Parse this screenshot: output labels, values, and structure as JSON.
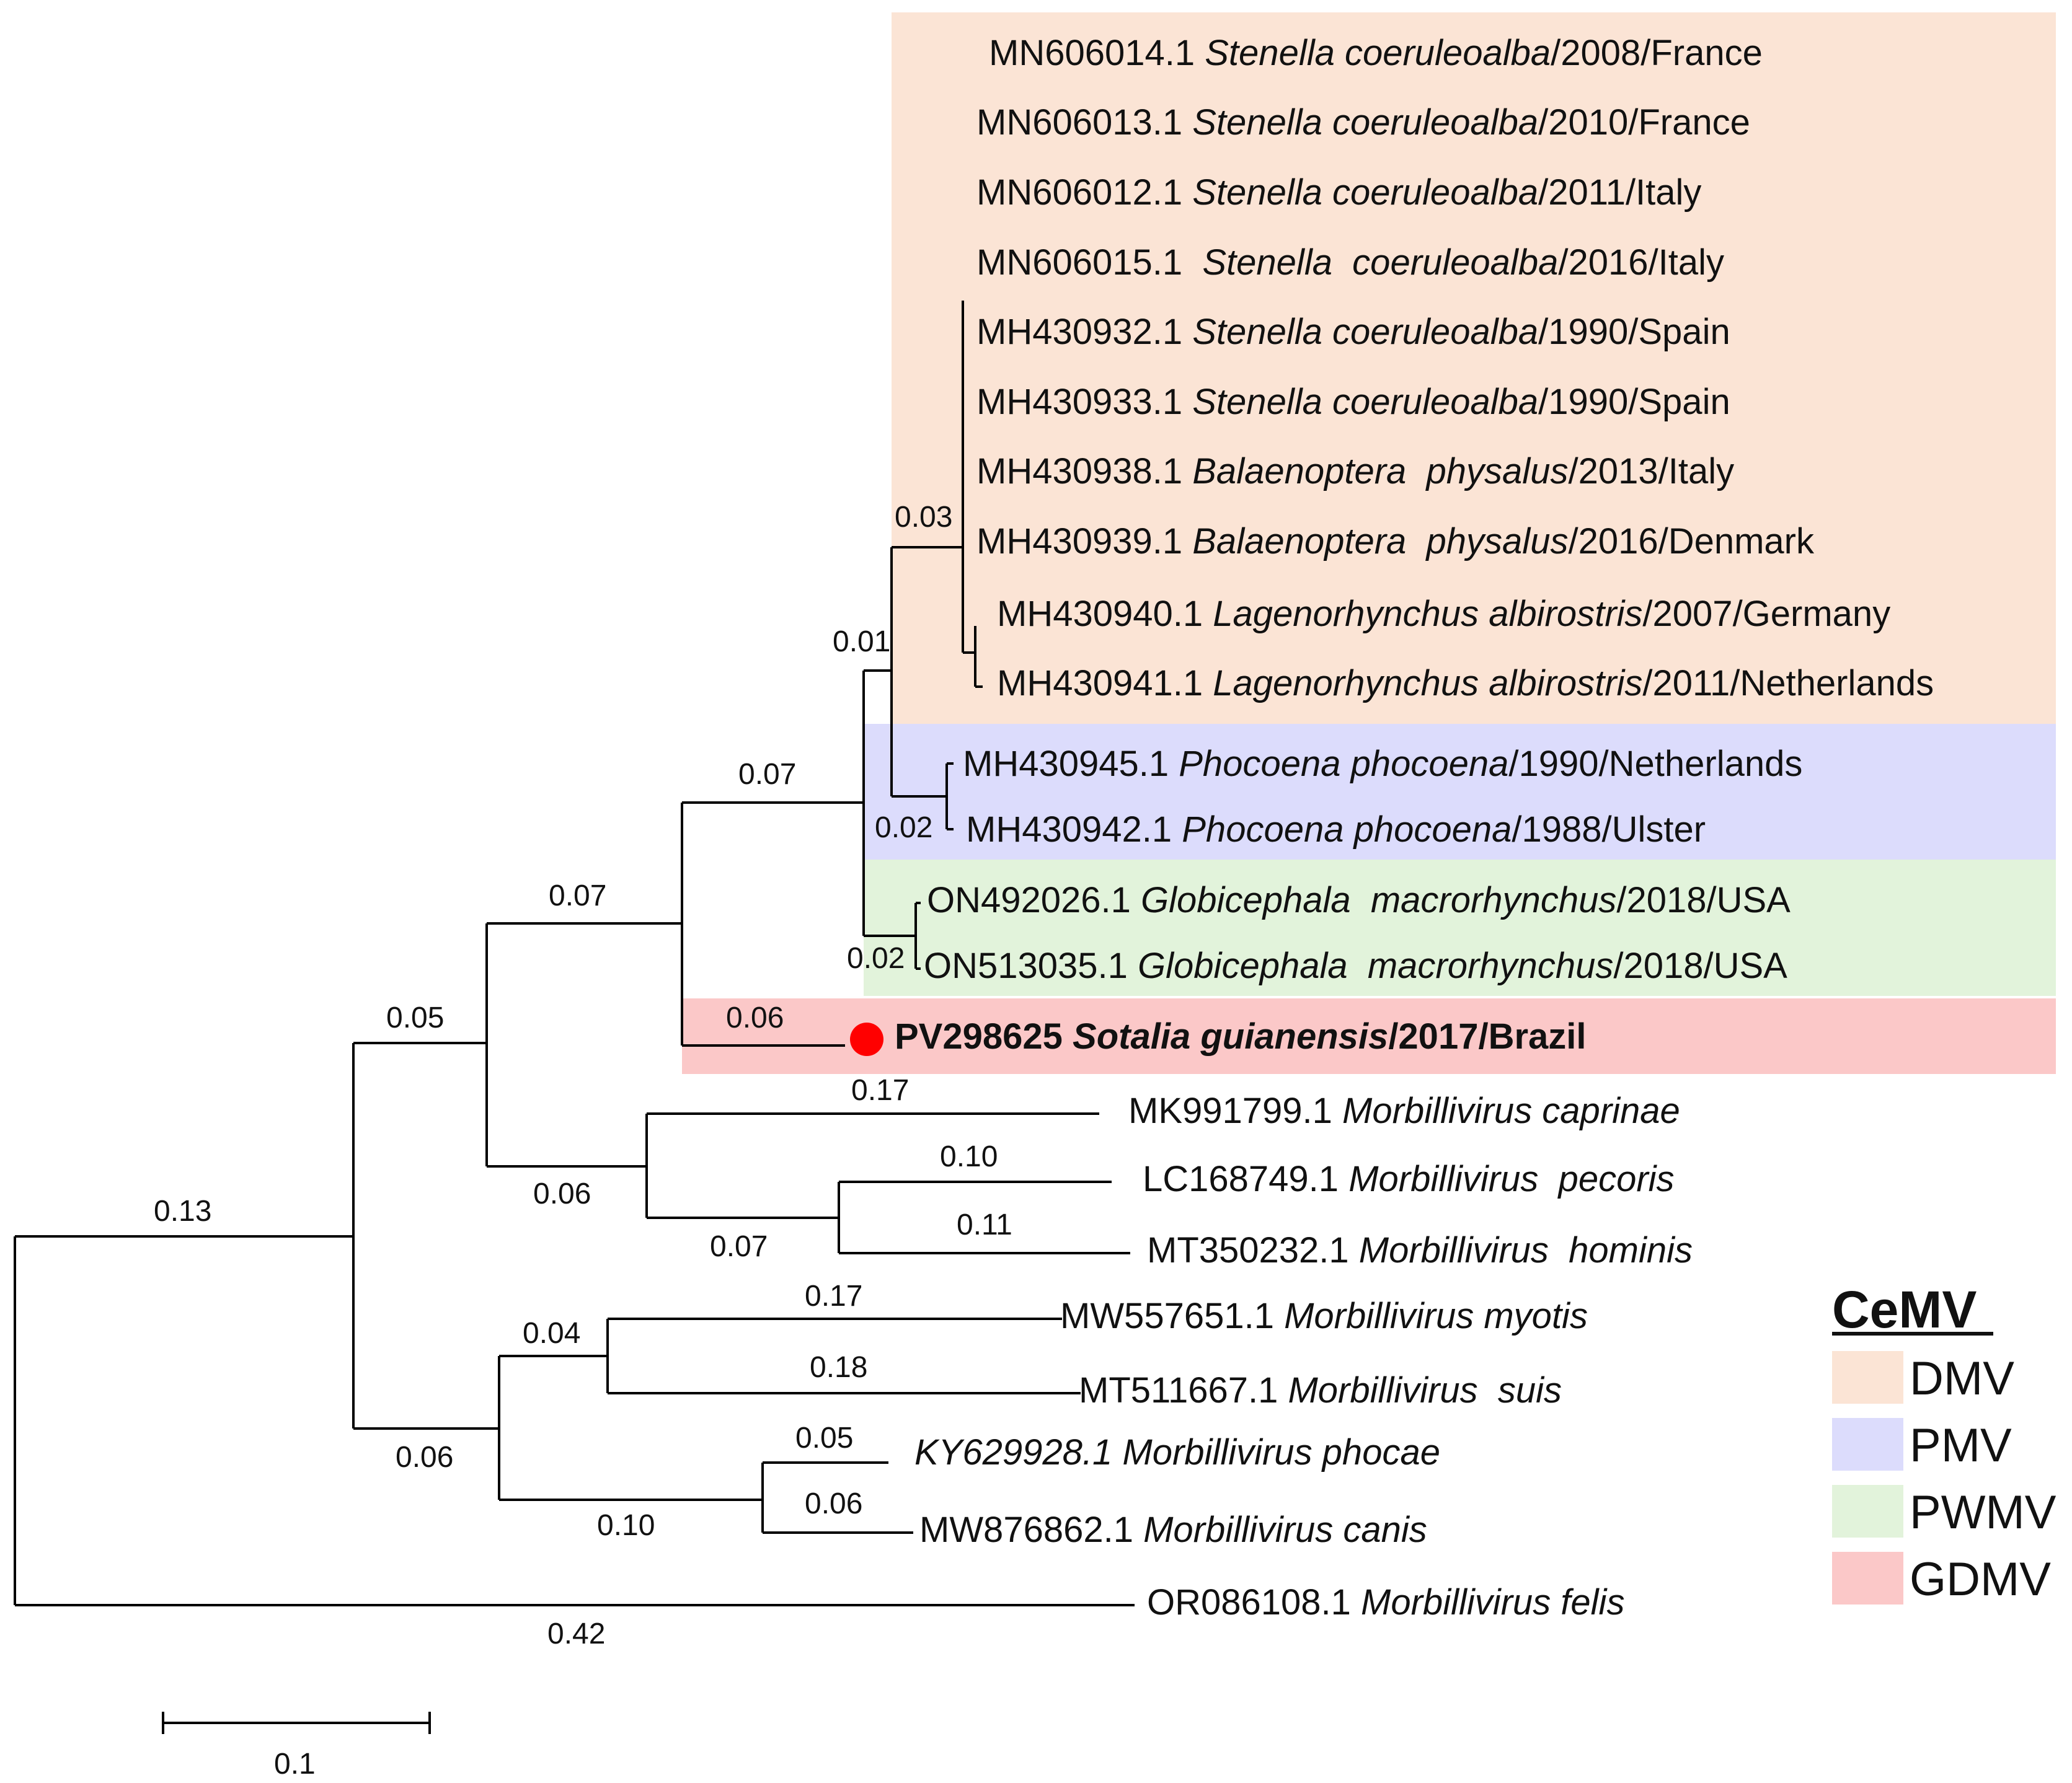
{
  "figure": {
    "type": "phylogenetic-tree",
    "highlight_marker": {
      "color": "#ff0000"
    }
  },
  "clade_colors": {
    "DMV": "#fbe4d5",
    "PMV": "#dcdcfc",
    "PWMV": "#e2f3db",
    "GDMV": "#fbc8c8"
  },
  "taxa": {
    "t1": {
      "accession": "MN606014.1",
      "species": "Stenella coeruleoalba",
      "suffix": "/2008/France"
    },
    "t2": {
      "accession": "MN606013.1",
      "species": "Stenella coeruleoalba",
      "suffix": "/2010/France"
    },
    "t3": {
      "accession": "MN606012.1",
      "species": "Stenella coeruleoalba",
      "suffix": "/2011/Italy"
    },
    "t4": {
      "accession": "MN606015.1",
      "species": "Stenella  coeruleoalba",
      "suffix": "/2016/Italy"
    },
    "t5": {
      "accession": "MH430932.1",
      "species": "Stenella coeruleoalba",
      "suffix": "/1990/Spain"
    },
    "t6": {
      "accession": "MH430933.1",
      "species": "Stenella coeruleoalba",
      "suffix": "/1990/Spain"
    },
    "t7": {
      "accession": "MH430938.1",
      "species": "Balaenoptera  physalus",
      "suffix": "/2013/Italy"
    },
    "t8": {
      "accession": "MH430939.1",
      "species": "Balaenoptera  physalus",
      "suffix": "/2016/Denmark"
    },
    "t9": {
      "accession": "MH430940.1",
      "species": "Lagenorhynchus albirostris",
      "suffix": "/2007/Germany"
    },
    "t10": {
      "accession": "MH430941.1",
      "species": "Lagenorhynchus albirostris",
      "suffix": "/2011/Netherlands"
    },
    "t11": {
      "accession": "MH430945.1",
      "species": "Phocoena phocoena",
      "suffix": "/1990/Netherlands"
    },
    "t12": {
      "accession": "MH430942.1",
      "species": "Phocoena phocoena",
      "suffix": "/1988/Ulster"
    },
    "t13": {
      "accession": "ON492026.1",
      "species": "Globicephala  macrorhynchus",
      "suffix": "/2018/USA"
    },
    "t14": {
      "accession": "ON513035.1",
      "species": "Globicephala  macrorhynchus",
      "suffix": "/2018/USA"
    },
    "t15": {
      "accession": "PV298625",
      "species": "Sotalia guianensis",
      "suffix": "/2017/Brazil"
    },
    "t16": {
      "accession": "MK991799.1",
      "species": "Morbillivirus caprinae",
      "suffix": ""
    },
    "t17": {
      "accession": "LC168749.1",
      "species": "Morbillivirus  pecoris",
      "suffix": ""
    },
    "t18": {
      "accession": "MT350232.1",
      "species": "Morbillivirus  hominis",
      "suffix": ""
    },
    "t19": {
      "accession": "MW557651.1",
      "species": "Morbillivirus myotis",
      "suffix": ""
    },
    "t20": {
      "accession": "MT511667.1",
      "species": "Morbillivirus  suis",
      "suffix": ""
    },
    "t21": {
      "accession": "KY629928.1",
      "species": "Morbillivirus phocae",
      "suffix": ""
    },
    "t22": {
      "accession": "MW876862.1",
      "species": "Morbillivirus canis",
      "suffix": ""
    },
    "t23": {
      "accession": "OR086108.1",
      "species": "Morbillivirus felis",
      "suffix": ""
    }
  },
  "branch_lengths": {
    "b_pwmv": "0.02",
    "b_pmv": "0.02",
    "b_dmv": "0.03",
    "b_cemv_core": "0.01",
    "b_cemv": "0.07",
    "b_gdmv": "0.06",
    "b_cemv_group": "0.07",
    "b_ruminant": "0.06",
    "b_pecoris_hominis": "0.07",
    "b_caprinae": "0.17",
    "b_pecoris": "0.10",
    "b_hominis": "0.11",
    "b_upper": "0.05",
    "b_root_upper": "0.13",
    "b_lower": "0.06",
    "b_myotis_suis": "0.04",
    "b_myotis": "0.17",
    "b_suis": "0.18",
    "b_phocae_canis": "0.10",
    "b_phocae": "0.05",
    "b_canis": "0.06",
    "b_felis": "0.42"
  },
  "scale_bar": {
    "label": "0.1"
  },
  "legend": {
    "title": "CeMV",
    "items": [
      "DMV",
      "PMV",
      "PWMV",
      "GDMV"
    ]
  }
}
